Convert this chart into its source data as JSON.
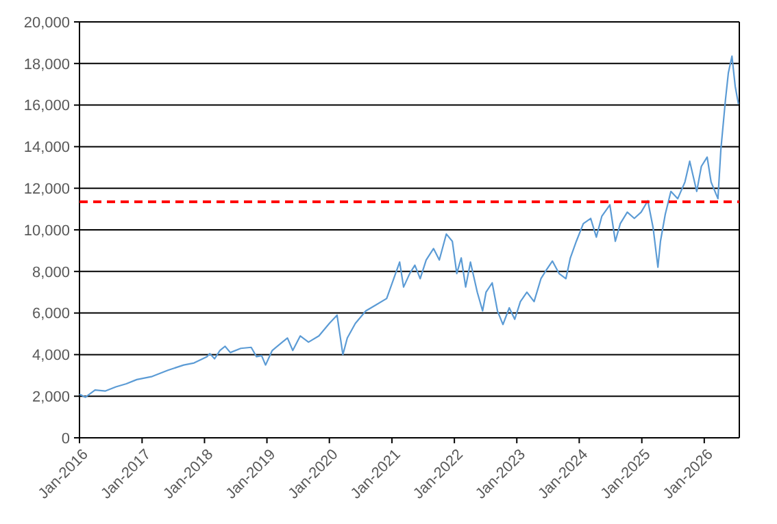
{
  "chart_data": {
    "type": "line",
    "x": [
      "2016-01-01",
      "2016-02-05",
      "2016-04-01",
      "2016-06-01",
      "2016-08-01",
      "2016-10-01",
      "2016-12-01",
      "2017-03-01",
      "2017-06-01",
      "2017-09-01",
      "2017-11-01",
      "2018-01-15",
      "2018-02-01",
      "2018-03-01",
      "2018-04-01",
      "2018-05-01",
      "2018-06-01",
      "2018-08-01",
      "2018-10-01",
      "2018-11-01",
      "2018-12-01",
      "2018-12-24",
      "2019-02-01",
      "2019-04-01",
      "2019-05-01",
      "2019-06-01",
      "2019-07-15",
      "2019-09-01",
      "2019-11-01",
      "2020-01-01",
      "2020-02-15",
      "2020-03-20",
      "2020-04-15",
      "2020-06-01",
      "2020-08-01",
      "2020-10-01",
      "2020-12-01",
      "2021-02-15",
      "2021-03-10",
      "2021-04-15",
      "2021-05-15",
      "2021-06-15",
      "2021-07-20",
      "2021-09-01",
      "2021-10-05",
      "2021-11-15",
      "2021-12-20",
      "2022-01-15",
      "2022-02-10",
      "2022-03-08",
      "2022-04-05",
      "2022-05-15",
      "2022-06-15",
      "2022-07-05",
      "2022-08-10",
      "2022-09-10",
      "2022-10-12",
      "2022-11-18",
      "2022-12-20",
      "2023-01-22",
      "2023-03-01",
      "2023-04-12",
      "2023-05-22",
      "2023-06-25",
      "2023-07-28",
      "2023-09-05",
      "2023-10-15",
      "2023-11-10",
      "2023-12-15",
      "2024-01-25",
      "2024-03-08",
      "2024-04-10",
      "2024-05-12",
      "2024-06-28",
      "2024-07-30",
      "2024-08-28",
      "2024-10-08",
      "2024-11-18",
      "2024-12-28",
      "2025-02-05",
      "2025-03-08",
      "2025-04-05",
      "2025-04-20",
      "2025-05-18",
      "2025-06-20",
      "2025-07-30",
      "2025-09-10",
      "2025-10-08",
      "2025-11-18",
      "2025-12-15",
      "2026-01-18",
      "2026-02-10",
      "2026-03-22",
      "2026-04-08",
      "2026-05-05",
      "2026-05-22",
      "2026-06-12",
      "2026-07-01",
      "2026-07-20"
    ],
    "series": [
      {
        "color": "#5b9bd5",
        "values": [
          2100,
          1950,
          2300,
          2250,
          2450,
          2600,
          2800,
          2950,
          3250,
          3500,
          3600,
          3900,
          4050,
          3800,
          4200,
          4400,
          4100,
          4300,
          4350,
          3900,
          3950,
          3500,
          4200,
          4600,
          4800,
          4200,
          4900,
          4600,
          4900,
          5500,
          5900,
          4000,
          4800,
          5500,
          6100,
          6400,
          6700,
          8450,
          7250,
          7900,
          8300,
          7650,
          8550,
          9100,
          8550,
          9800,
          9450,
          7900,
          8650,
          7250,
          8450,
          7000,
          6100,
          7000,
          7450,
          6100,
          5450,
          6250,
          5700,
          6550,
          7000,
          6550,
          7650,
          8100,
          8500,
          7900,
          7650,
          8650,
          9450,
          10300,
          10550,
          9650,
          10650,
          11200,
          9450,
          10300,
          10850,
          10550,
          10850,
          11400,
          10100,
          8200,
          9450,
          10750,
          11850,
          11500,
          12300,
          13300,
          11850,
          13050,
          13500,
          12300,
          11500,
          13850,
          16250,
          17550,
          18350,
          16900,
          16050
        ]
      }
    ],
    "xlim": [
      "2016-01-01",
      "2026-07-25"
    ],
    "xticks": [
      {
        "value": "2016-01-01",
        "label": "Jan-2016"
      },
      {
        "value": "2017-01-01",
        "label": "Jan-2017"
      },
      {
        "value": "2018-01-01",
        "label": "Jan-2018"
      },
      {
        "value": "2019-01-01",
        "label": "Jan-2019"
      },
      {
        "value": "2020-01-01",
        "label": "Jan-2020"
      },
      {
        "value": "2021-01-01",
        "label": "Jan-2021"
      },
      {
        "value": "2022-01-01",
        "label": "Jan-2022"
      },
      {
        "value": "2023-01-01",
        "label": "Jan-2023"
      },
      {
        "value": "2024-01-01",
        "label": "Jan-2024"
      },
      {
        "value": "2025-01-01",
        "label": "Jan-2025"
      },
      {
        "value": "2026-01-01",
        "label": "Jan-2026"
      }
    ],
    "ylim": [
      0,
      20000
    ],
    "yticks": [
      0,
      {
        "value": 2000,
        "label": "2,000"
      },
      {
        "value": 4000,
        "label": "4,000"
      },
      {
        "value": 6000,
        "label": "6,000"
      },
      {
        "value": 8000,
        "label": "8,000"
      },
      {
        "value": 10000,
        "label": "10,000"
      },
      {
        "value": 12000,
        "label": "12,000"
      },
      {
        "value": 14000,
        "label": "14,000"
      },
      {
        "value": 16000,
        "label": "16,000"
      },
      {
        "value": 18000,
        "label": "18,000"
      },
      {
        "value": 20000,
        "label": "20,000"
      }
    ],
    "grid": "y",
    "ref_lines": [
      {
        "axis": "y",
        "value": 11350,
        "color": "#ff0000",
        "line_style": "dashed"
      }
    ]
  }
}
